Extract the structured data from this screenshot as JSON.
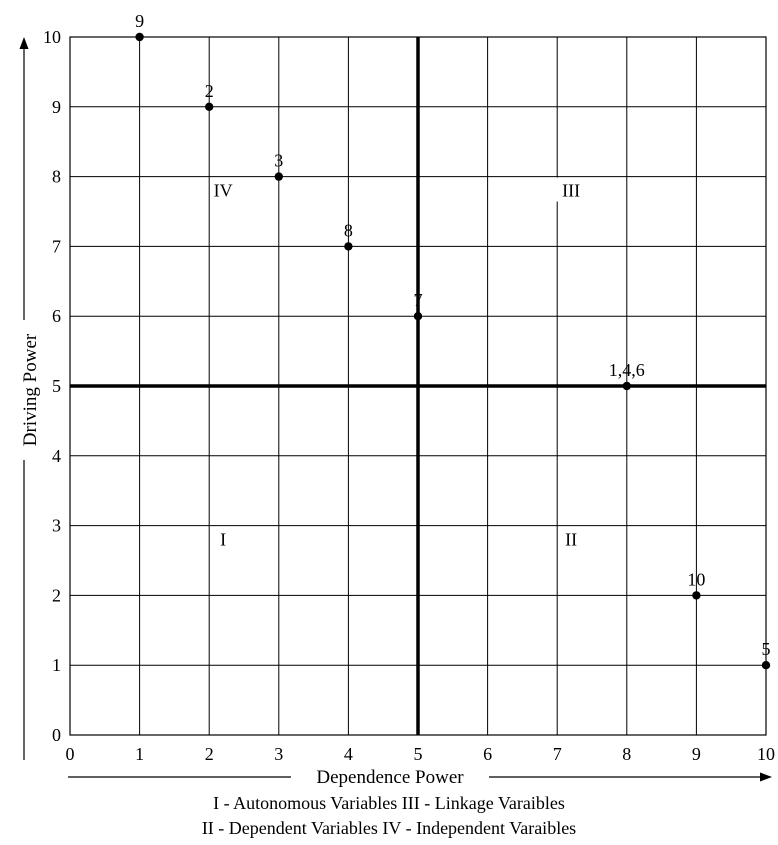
{
  "chart_data": {
    "type": "scatter",
    "title": "",
    "xlabel": "Dependence Power",
    "ylabel": "Driving Power",
    "xlim": [
      0,
      10
    ],
    "ylim": [
      0,
      10
    ],
    "xticks": [
      "0",
      "1",
      "2",
      "3",
      "4",
      "5",
      "6",
      "7",
      "8",
      "9",
      "10"
    ],
    "yticks": [
      "0",
      "1",
      "2",
      "3",
      "4",
      "5",
      "6",
      "7",
      "8",
      "9",
      "10"
    ],
    "grid": true,
    "divider_lines": {
      "x": 5,
      "y": 5
    },
    "points": [
      {
        "label": "9",
        "x": 1,
        "y": 10
      },
      {
        "label": "2",
        "x": 2,
        "y": 9
      },
      {
        "label": "3",
        "x": 3,
        "y": 8
      },
      {
        "label": "8",
        "x": 4,
        "y": 7
      },
      {
        "label": "7",
        "x": 5,
        "y": 6
      },
      {
        "label": "1,4,6",
        "x": 8,
        "y": 5
      },
      {
        "label": "10",
        "x": 9,
        "y": 2
      },
      {
        "label": "5",
        "x": 10,
        "y": 1
      }
    ],
    "quadrants": [
      {
        "label": "IV",
        "x": 2.2,
        "y": 7.8
      },
      {
        "label": "III",
        "x": 7.2,
        "y": 7.8
      },
      {
        "label": "I",
        "x": 2.2,
        "y": 2.8
      },
      {
        "label": "II",
        "x": 7.2,
        "y": 2.8
      }
    ]
  },
  "legend": {
    "line1": "I - Autonomous Variables III - Linkage Varaibles",
    "line2": "II - Dependent Variables IV - Independent Varaibles"
  }
}
